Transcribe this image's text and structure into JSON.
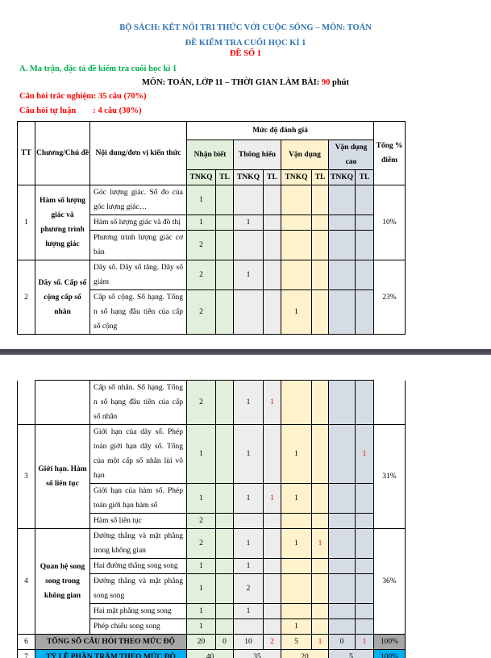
{
  "header": {
    "line1": "BỘ SÁCH: KẾT NỐI TRI THỨC VỚI CUỘC SỐNG – MÔN: TOÁN",
    "line2": "ĐỀ KIỂM TRA CUỐI HỌC KÌ 1",
    "line3": "ĐỀ SỐ 1",
    "section": "A. Ma trận, đặc tả đề kiểm tra cuối học kì 1",
    "subject_prefix": "MÔN: TOÁN, LỚP 11 – THỜI GIAN LÀM BÀI: ",
    "minutes": "90",
    "minutes_unit": " phút",
    "mc_line": "Câu hỏi trắc nghiệm: 35 câu (70%)",
    "essay_line": "Câu hỏi tự luận        : 4 câu (30%)"
  },
  "colors": {
    "title": "#2e74b5",
    "accent_red": "#ff0000",
    "section_green": "#00b050",
    "nb": "#e2efda",
    "th": "#ededed",
    "vd": "#fff2cc",
    "vdc": "#d6dce4",
    "total_row": "#a6a6a6",
    "percent_row": "#00b0f0"
  },
  "table": {
    "headers": {
      "tt": "TT",
      "chapter": "Chương/Chủ đề",
      "content": "Nội dung/đơn vị kiến thức",
      "level": "Mức độ đánh giá",
      "levels": [
        "Nhận  biết",
        "Thông hiểu",
        "Vận  dụng",
        "Vận dụng cao"
      ],
      "total": "Tổng % điểm",
      "sub": [
        "TNKQ",
        "TL",
        "TNKQ",
        "TL",
        "TNKQ",
        "TL",
        "TNKQ",
        "TL"
      ]
    },
    "page1": [
      {
        "tt": "1",
        "chapter": "Hàm số lượng giác và phương trình lượng giác",
        "percent": "10%",
        "rows": [
          {
            "content": "Góc lượng giác. Số đo của góc lượng giác…",
            "values": [
              "1",
              "",
              "",
              "",
              "",
              "",
              "",
              ""
            ]
          },
          {
            "content": "Hàm số lượng giác và đồ thị",
            "values": [
              "1",
              "",
              "1",
              "",
              "",
              "",
              "",
              ""
            ]
          },
          {
            "content": "Phương trình lượng giác cơ bản",
            "values": [
              "2",
              "",
              "",
              "",
              "",
              "",
              "",
              ""
            ]
          }
        ]
      },
      {
        "tt": "2",
        "chapter": "Dãy số. Cấp số cộng cấp số nhân",
        "percent": "23%",
        "rows": [
          {
            "content": "Dãy số. Dãy số tăng. Dãy số giảm",
            "values": [
              "2",
              "",
              "1",
              "",
              "",
              "",
              "",
              ""
            ]
          },
          {
            "content": "Cấp số cộng. Số hạng. Tổng n số hạng đầu tiên của cấp số cộng",
            "values": [
              "2",
              "",
              "",
              "",
              "1",
              "",
              "",
              ""
            ]
          }
        ]
      }
    ],
    "page2": [
      {
        "tt": "",
        "chapter": "",
        "percent": "",
        "continued": true,
        "rows": [
          {
            "content": "Cấp số nhân. Số hạng. Tổng n số hạng đầu tiên của cấp số nhân",
            "values": [
              "2",
              "",
              "1",
              "1",
              "",
              "",
              "",
              ""
            ]
          }
        ]
      },
      {
        "tt": "3",
        "chapter": "Giới hạn. Hàm số liên tục",
        "percent": "31%",
        "rows": [
          {
            "content": "Giới hạn của dãy số. Phép toán giới hạn dãy số. Tổng của một cấp số nhân lùi vô hạn",
            "values": [
              "1",
              "",
              "1",
              "",
              "1",
              "",
              "",
              "1"
            ]
          },
          {
            "content": "Giới hạn của hàm số. Phép toán giới hạn hàm số",
            "values": [
              "1",
              "",
              "1",
              "1",
              "1",
              "",
              "",
              ""
            ]
          },
          {
            "content": "Hàm số liên tục",
            "values": [
              "2",
              "",
              "",
              "",
              "",
              "",
              "",
              ""
            ]
          }
        ]
      },
      {
        "tt": "4",
        "chapter": "Quan hệ song song trong không gian",
        "percent": "36%",
        "rows": [
          {
            "content": "Đường thẳng và mặt phẳng trong không gian",
            "values": [
              "2",
              "",
              "1",
              "",
              "1",
              "1",
              "",
              ""
            ]
          },
          {
            "content": "Hai đường thẳng song song",
            "values": [
              "1",
              "",
              "1",
              "",
              "",
              "",
              "",
              ""
            ]
          },
          {
            "content": "Đường thẳng và mặt phẳng song song",
            "values": [
              "1",
              "",
              "2",
              "",
              "",
              "",
              "",
              ""
            ]
          },
          {
            "content": "Hai mặt phẳng song song",
            "values": [
              "1",
              "",
              "1",
              "",
              "",
              "",
              "",
              ""
            ]
          },
          {
            "content": "Phép chiếu song song",
            "values": [
              "1",
              "",
              "",
              "",
              "1",
              "",
              "",
              ""
            ]
          }
        ]
      }
    ],
    "totals": {
      "tt": "6",
      "label": "TỔNG SỐ CÂU HỎI THEO MỨC ĐỘ",
      "values": [
        "20",
        "0",
        "10",
        "2",
        "5",
        "1",
        "0",
        "1"
      ],
      "percent": "100%"
    },
    "ratio": {
      "tt": "7",
      "label": "TỶ LỆ PHẦN TRĂM THEO MỨC ĐỘ",
      "values": [
        "40",
        "35",
        "20",
        "5"
      ],
      "percent": "100%"
    }
  }
}
